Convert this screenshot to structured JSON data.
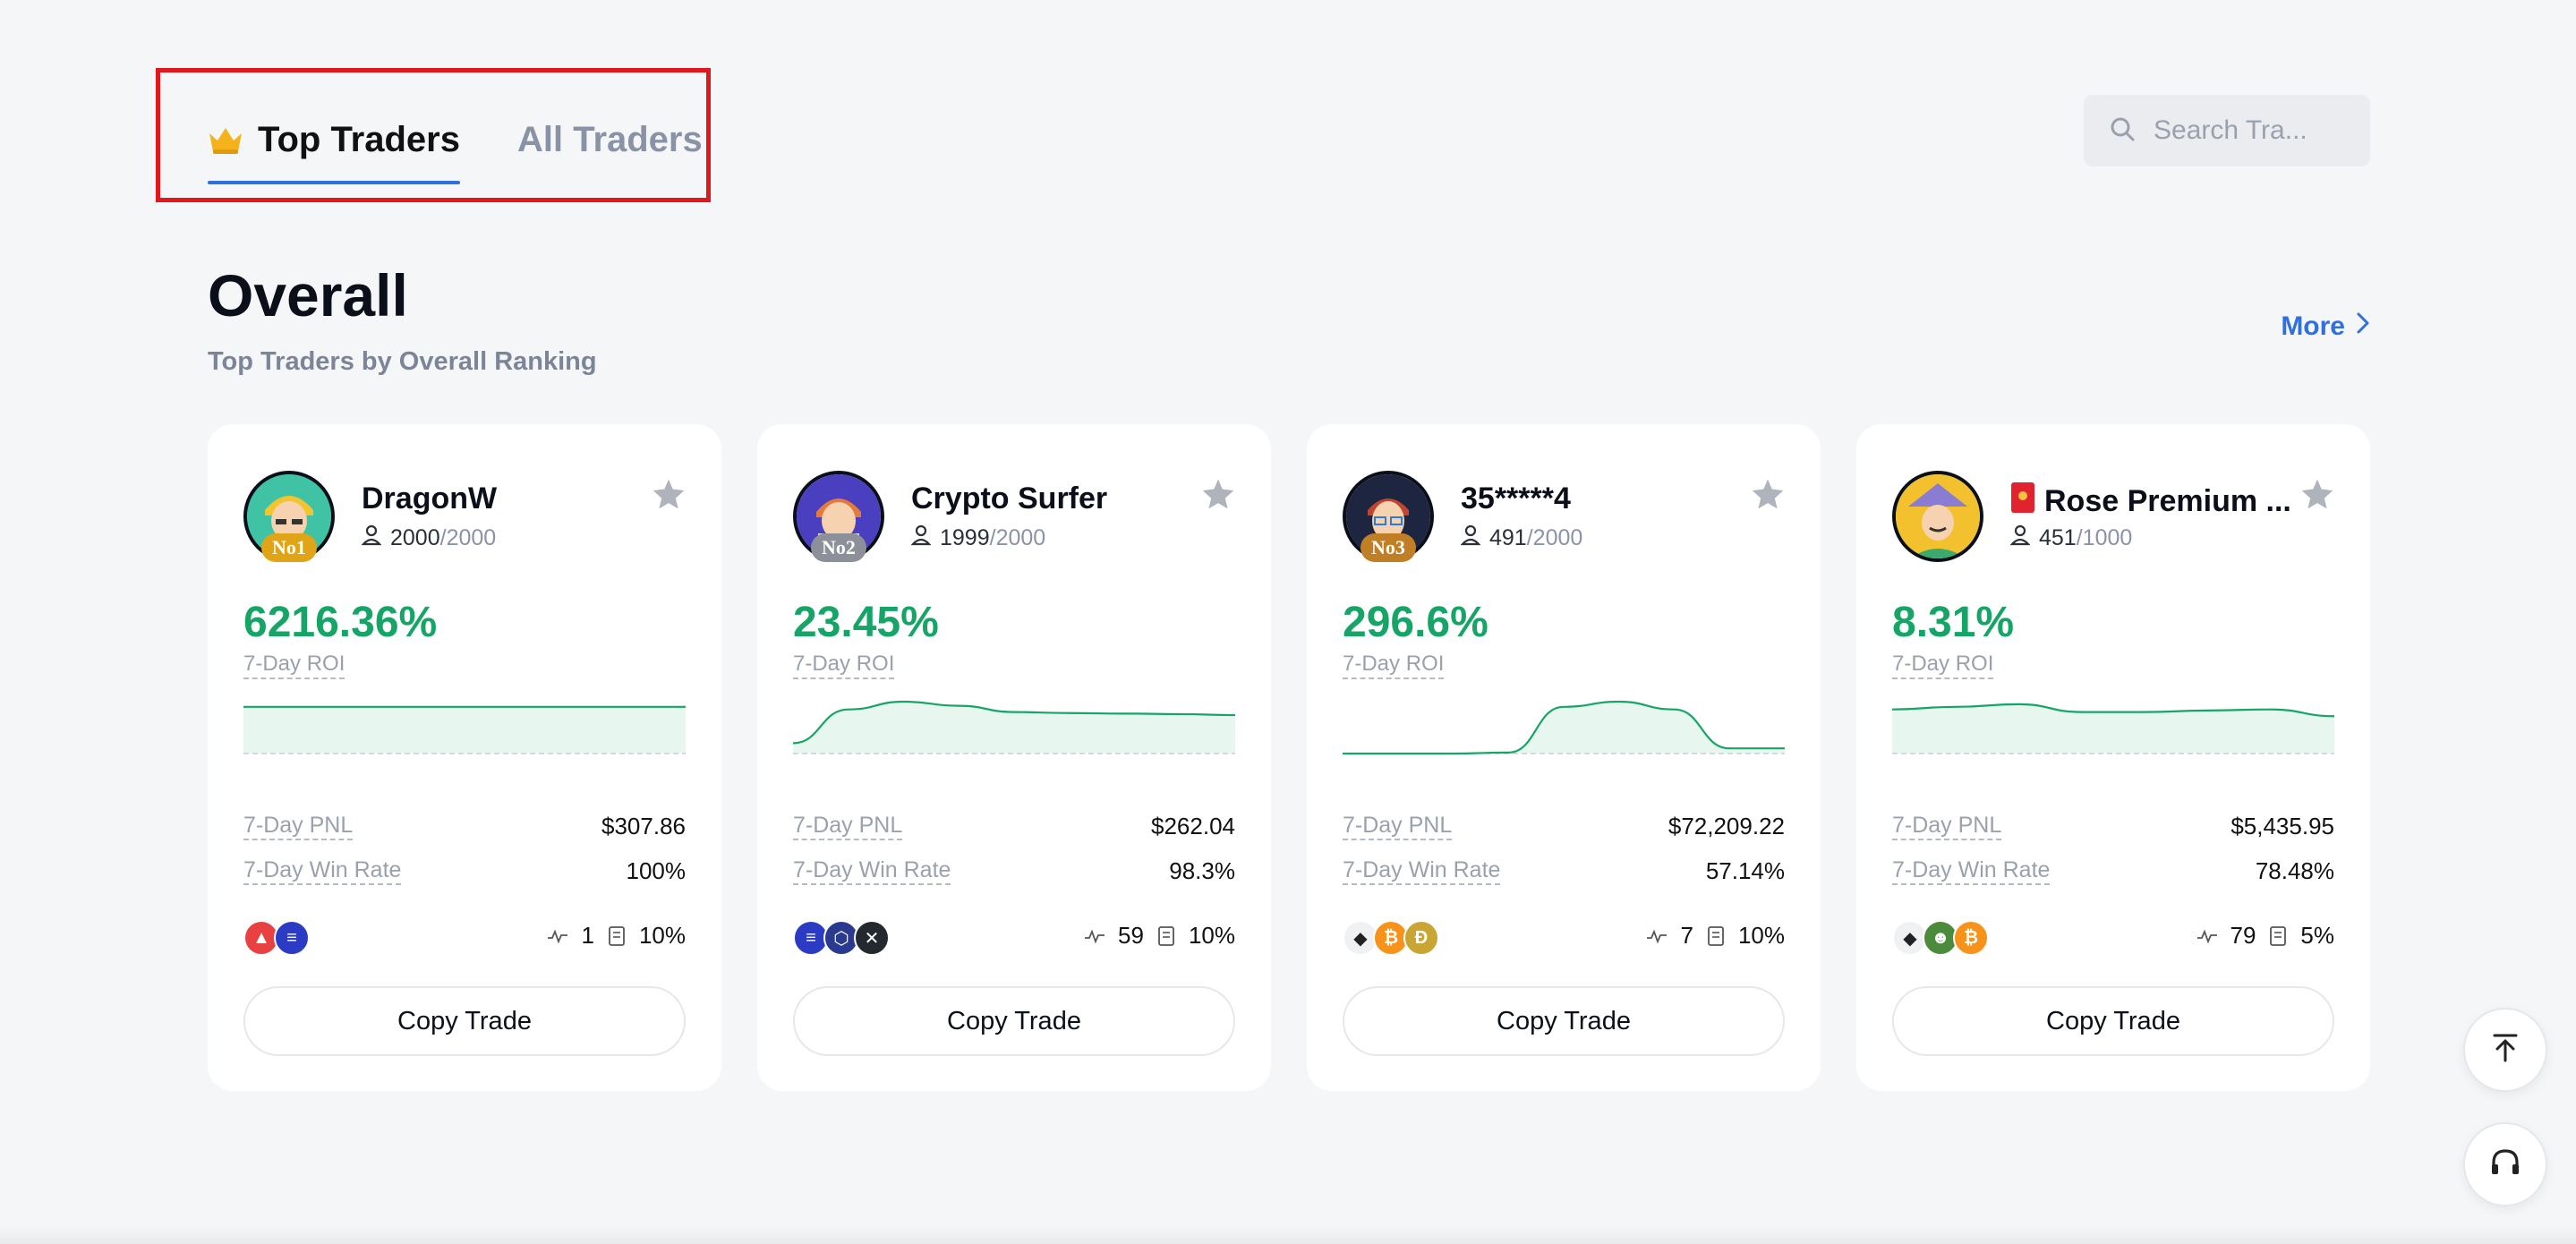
{
  "tabs": [
    {
      "label": "Top Traders",
      "active": true,
      "icon": "crown-icon"
    },
    {
      "label": "All Traders",
      "active": false
    }
  ],
  "search": {
    "placeholder": "Search Tra..."
  },
  "section": {
    "title": "Overall",
    "subtitle": "Top Traders by Overall Ranking",
    "more_label": "More"
  },
  "labels": {
    "roi": "7-Day ROI",
    "pnl": "7-Day PNL",
    "win_rate": "7-Day Win Rate",
    "copy": "Copy Trade"
  },
  "cards": [
    {
      "name": "DragonW",
      "rank": "No1",
      "followers": "2000",
      "max_followers": "/2000",
      "roi": "6216.36%",
      "pnl": "$307.86",
      "win_rate": "100%",
      "trades": "1",
      "share": "10%",
      "coins": [
        "avax",
        "solana"
      ],
      "spark": [
        0.9,
        0.9,
        0.9,
        0.9,
        0.9,
        0.9,
        0.9,
        0.9
      ]
    },
    {
      "name": "Crypto Surfer",
      "rank": "No2",
      "followers": "1999",
      "max_followers": "/2000",
      "roi": "23.45%",
      "pnl": "$262.04",
      "win_rate": "98.3%",
      "trades": "59",
      "share": "10%",
      "coins": [
        "solana",
        "chainlink",
        "xrp"
      ],
      "spark": [
        0.2,
        0.85,
        1.0,
        0.92,
        0.8,
        0.78,
        0.77,
        0.76,
        0.74
      ]
    },
    {
      "name": "35*****4",
      "rank": "No3",
      "followers": "491",
      "max_followers": "/2000",
      "roi": "296.6%",
      "pnl": "$72,209.22",
      "win_rate": "57.14%",
      "trades": "7",
      "share": "10%",
      "coins": [
        "ethereum",
        "bitcoin",
        "dogecoin"
      ],
      "spark": [
        0.0,
        0.0,
        0.0,
        0.02,
        0.9,
        1.0,
        0.85,
        0.1,
        0.1
      ]
    },
    {
      "name": "Rose Premium ...",
      "rank": "",
      "followers": "451",
      "max_followers": "/1000",
      "roi": "8.31%",
      "pnl": "$5,435.95",
      "win_rate": "78.48%",
      "trades": "79",
      "share": "5%",
      "coins": [
        "ethereum",
        "pepe",
        "bitcoin"
      ],
      "spark": [
        0.85,
        0.9,
        0.95,
        0.8,
        0.8,
        0.83,
        0.85,
        0.72
      ]
    }
  ],
  "colors": {
    "accent": "#2f6fde",
    "positive": "#16a567",
    "highlight_border": "#e0171d"
  }
}
